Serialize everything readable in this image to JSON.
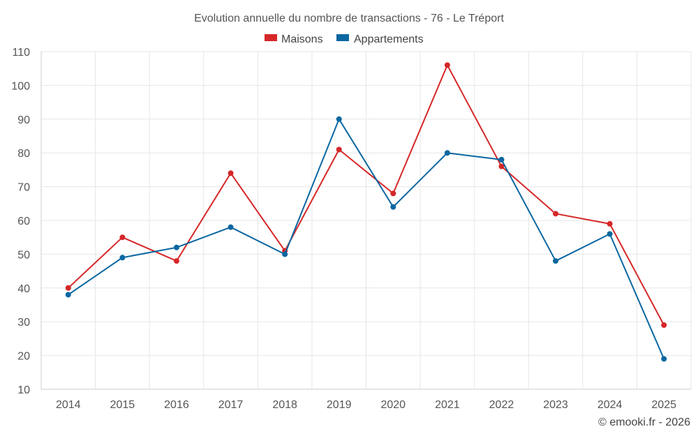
{
  "chart_data": {
    "type": "line",
    "title": "Evolution annuelle du nombre de transactions - 76 - Le Tréport",
    "categories": [
      "2014",
      "2015",
      "2016",
      "2017",
      "2018",
      "2019",
      "2020",
      "2021",
      "2022",
      "2023",
      "2024",
      "2025"
    ],
    "series": [
      {
        "name": "Maisons",
        "color": "#d62728",
        "values": [
          40,
          55,
          48,
          74,
          51,
          81,
          68,
          106,
          76,
          62,
          59,
          29
        ]
      },
      {
        "name": "Appartements",
        "color": "#0b67a0",
        "values": [
          38,
          49,
          52,
          58,
          50,
          90,
          64,
          80,
          78,
          48,
          56,
          19
        ]
      }
    ],
    "ylim": [
      10,
      110
    ],
    "yticks": [
      10,
      20,
      30,
      40,
      50,
      60,
      70,
      80,
      90,
      100,
      110
    ],
    "xlabel": "",
    "ylabel": "",
    "grid": true,
    "legend_position": "top-center"
  },
  "credit": "© emooki.fr - 2026"
}
